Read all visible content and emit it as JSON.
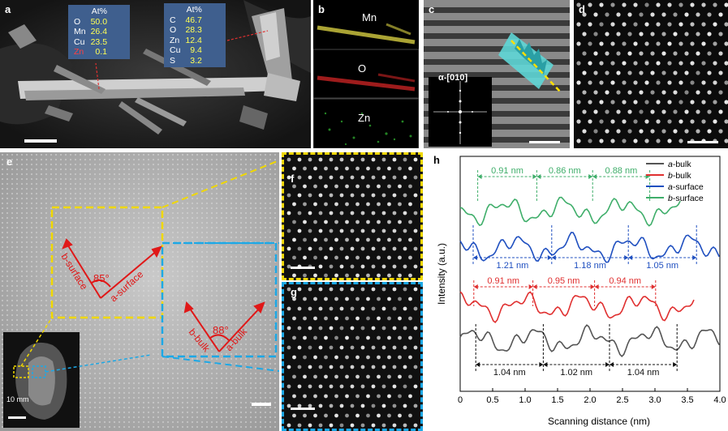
{
  "panel_a": {
    "label": "a",
    "table1": {
      "header": "At%",
      "rows": [
        [
          "O",
          "50.0"
        ],
        [
          "Mn",
          "26.4"
        ],
        [
          "Cu",
          "23.5"
        ],
        [
          "Zn",
          "0.1"
        ]
      ]
    },
    "table2": {
      "header": "At%",
      "rows": [
        [
          "C",
          "46.7"
        ],
        [
          "O",
          "28.3"
        ],
        [
          "Zn",
          "12.4"
        ],
        [
          "Cu",
          "9.4"
        ],
        [
          "S",
          "3.2"
        ]
      ]
    }
  },
  "panel_b": {
    "label": "b",
    "maps": [
      {
        "el": "Mn",
        "color": "#e6e050"
      },
      {
        "el": "O",
        "color": "#e04040"
      },
      {
        "el": "Zn",
        "color": "#40d040"
      }
    ]
  },
  "panel_c": {
    "label": "c",
    "inset": "α-[010]"
  },
  "panel_d": {
    "label": "d"
  },
  "panel_e": {
    "label": "e",
    "surface": {
      "b": "b-surface",
      "a": "a-surface",
      "angle": "85°"
    },
    "bulk": {
      "b": "b-bulk",
      "a": "a-bulk",
      "angle": "88°"
    },
    "inset_scale": "10 mm"
  },
  "panel_f": {
    "label": "f"
  },
  "panel_g": {
    "label": "g"
  },
  "panel_h": {
    "label": "h"
  },
  "chart_data": {
    "type": "line",
    "xlabel": "Scanning distance (nm)",
    "ylabel": "Intensity (a.u.)",
    "xlim": [
      0,
      4.0
    ],
    "xticks": [
      "0",
      "0.5",
      "1.0",
      "1.5",
      "2.0",
      "2.5",
      "3.0",
      "3.5",
      "4.0"
    ],
    "series": [
      {
        "name": "a-bulk",
        "color": "#555555"
      },
      {
        "name": "b-bulk",
        "color": "#e03030"
      },
      {
        "name": "a-surface",
        "color": "#2050c0"
      },
      {
        "name": "b-surface",
        "color": "#3fae6a"
      }
    ],
    "spacings": [
      {
        "series": "b-surface",
        "color": "#3fae6a",
        "labels": [
          "0.91 nm",
          "0.86 nm",
          "0.88 nm"
        ],
        "marks": [
          0.27,
          1.18,
          2.04,
          2.92
        ]
      },
      {
        "series": "a-surface",
        "color": "#2050c0",
        "labels": [
          "1.21 nm",
          "1.18 nm",
          "1.05 nm"
        ],
        "marks": [
          0.2,
          1.41,
          2.59,
          3.64
        ]
      },
      {
        "series": "b-bulk",
        "color": "#e03030",
        "labels": [
          "0.91 nm",
          "0.95 nm",
          "0.94 nm"
        ],
        "marks": [
          0.21,
          1.12,
          2.07,
          3.01
        ]
      },
      {
        "series": "a-bulk",
        "color": "#111111",
        "labels": [
          "1.04 nm",
          "1.02 nm",
          "1.04 nm"
        ],
        "marks": [
          0.24,
          1.28,
          2.3,
          3.34
        ]
      }
    ]
  }
}
